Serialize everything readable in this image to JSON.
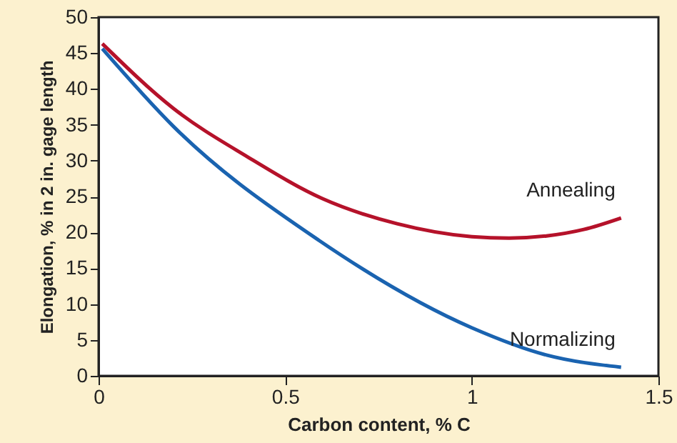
{
  "chart_data": {
    "type": "line",
    "xlabel": "Carbon content, % C",
    "ylabel": "Elongation, % in 2 in. gage length",
    "xlim": [
      0,
      1.5
    ],
    "xticks": [
      0,
      0.5,
      1,
      1.5
    ],
    "ylim": [
      0,
      50
    ],
    "yticks": [
      0,
      5,
      10,
      15,
      20,
      25,
      30,
      35,
      40,
      45,
      50
    ],
    "grid": false,
    "series": [
      {
        "name": "Annealing",
        "color": "#b5122a",
        "x": [
          0.01,
          0.2,
          0.4,
          0.6,
          0.8,
          1.0,
          1.1,
          1.2,
          1.3,
          1.4
        ],
        "values": [
          46.3,
          37.3,
          30.5,
          24.7,
          21.2,
          19.4,
          19.2,
          19.5,
          20.4,
          22.0
        ]
      },
      {
        "name": "Normalizing",
        "color": "#1a63b0",
        "x": [
          0.01,
          0.2,
          0.59,
          1.0,
          1.2,
          1.4
        ],
        "values": [
          45.6,
          34.8,
          18.9,
          6.7,
          2.9,
          1.2
        ]
      }
    ]
  }
}
